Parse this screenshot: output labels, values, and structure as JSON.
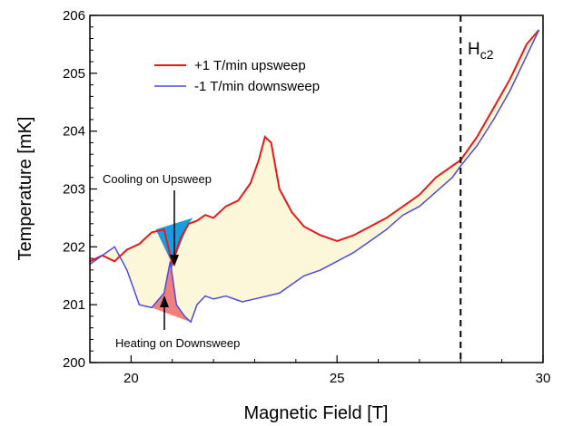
{
  "chart_data": {
    "type": "line",
    "xlabel": "Magnetic Field [T]",
    "ylabel": "Temperature [mK]",
    "xlim": [
      19,
      30
    ],
    "ylim": [
      200,
      206
    ],
    "xticks": [
      20,
      25,
      30
    ],
    "yticks": [
      200,
      201,
      202,
      203,
      204,
      205,
      206
    ],
    "grid": false,
    "legend_position": "top-left",
    "colors": {
      "upsweep": "#e8191b",
      "downsweep": "#4a4be0",
      "hysteresis_fill": "#fbf7d8",
      "cooling_fill": "#1a9de0",
      "heating_fill": "#f08080"
    },
    "series": [
      {
        "name": "+1 T/min upsweep",
        "x": [
          19.0,
          19.3,
          19.6,
          19.9,
          20.2,
          20.5,
          20.8,
          21.0,
          21.2,
          21.4,
          21.6,
          21.8,
          22.0,
          22.3,
          22.6,
          22.9,
          23.1,
          23.25,
          23.4,
          23.6,
          23.9,
          24.2,
          24.6,
          25.0,
          25.4,
          25.8,
          26.2,
          26.6,
          27.0,
          27.4,
          27.8,
          28.0,
          28.4,
          28.8,
          29.2,
          29.6,
          29.9
        ],
        "y": [
          201.75,
          201.85,
          201.75,
          201.95,
          202.05,
          202.25,
          202.3,
          201.7,
          202.15,
          202.4,
          202.45,
          202.55,
          202.5,
          202.7,
          202.8,
          203.1,
          203.5,
          203.9,
          203.8,
          203.0,
          202.6,
          202.35,
          202.2,
          202.1,
          202.2,
          202.35,
          202.5,
          202.7,
          202.9,
          203.2,
          203.4,
          203.5,
          203.9,
          204.4,
          204.9,
          205.5,
          205.75
        ]
      },
      {
        "name": "-1 T/min downsweep",
        "x": [
          19.0,
          19.3,
          19.6,
          19.9,
          20.2,
          20.5,
          20.8,
          20.95,
          21.1,
          21.3,
          21.45,
          21.6,
          21.8,
          22.0,
          22.3,
          22.7,
          23.0,
          23.3,
          23.6,
          23.9,
          24.2,
          24.6,
          25.0,
          25.4,
          25.8,
          26.2,
          26.6,
          27.0,
          27.4,
          27.8,
          28.0,
          28.4,
          28.8,
          29.2,
          29.6,
          29.9
        ],
        "y": [
          201.7,
          201.85,
          202.0,
          201.6,
          201.0,
          200.95,
          201.2,
          201.75,
          201.0,
          200.8,
          200.7,
          201.0,
          201.15,
          201.1,
          201.15,
          201.05,
          201.1,
          201.15,
          201.2,
          201.35,
          201.5,
          201.6,
          201.75,
          201.9,
          202.1,
          202.3,
          202.55,
          202.7,
          202.95,
          203.2,
          203.4,
          203.75,
          204.2,
          204.7,
          205.3,
          205.75
        ]
      }
    ],
    "annotations": {
      "cooling": "Cooling on Upsweep",
      "heating": "Heating on Downsweep",
      "hc2_main": "H",
      "hc2_sub": "c2",
      "hc2_field": 28.0
    }
  }
}
